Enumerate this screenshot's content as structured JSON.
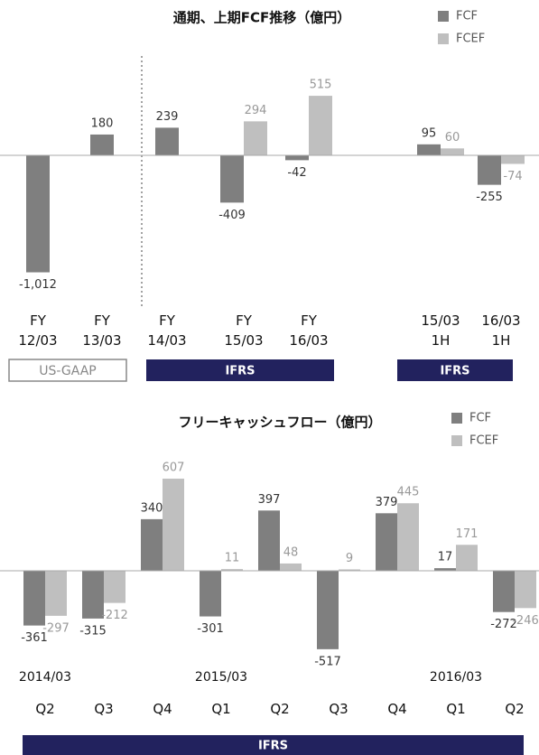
{
  "chart_data": [
    {
      "type": "bar",
      "title": "通期、上期FCF推移（億円）",
      "categories": [
        "FY 12/03",
        "FY 13/03",
        "FY 14/03",
        "FY 15/03",
        "FY 16/03",
        "15/03 1H",
        "16/03 1H"
      ],
      "series": [
        {
          "name": "FCF",
          "color": "#7f7f7f",
          "values": [
            -1012,
            180,
            239,
            -409,
            -42,
            95,
            -255
          ],
          "value_labels": [
            "-1,012",
            "180",
            "239",
            "-409",
            "-42",
            "95",
            "-255"
          ]
        },
        {
          "name": "FCEF",
          "color": "#bfbfbf",
          "values": [
            null,
            null,
            null,
            294,
            515,
            60,
            -74
          ]
        }
      ],
      "groups": [
        "US-GAAP",
        "IFRS",
        "IFRS"
      ]
    },
    {
      "type": "bar",
      "title": "フリーキャッシュフロー（億円）",
      "categories": [
        "Q2",
        "Q3",
        "Q4",
        "Q1",
        "Q2",
        "Q3",
        "Q4",
        "Q1",
        "Q2"
      ],
      "year_labels": [
        "2014/03",
        "2015/03",
        "2016/03"
      ],
      "series": [
        {
          "name": "FCF",
          "color": "#7f7f7f",
          "values": [
            -361,
            -315,
            340,
            -301,
            397,
            -517,
            379,
            17,
            -272
          ]
        },
        {
          "name": "FCEF",
          "color": "#bfbfbf",
          "values": [
            -297,
            -212,
            607,
            11,
            48,
            9,
            445,
            171,
            -246
          ]
        }
      ],
      "groups": [
        "IFRS"
      ]
    }
  ]
}
